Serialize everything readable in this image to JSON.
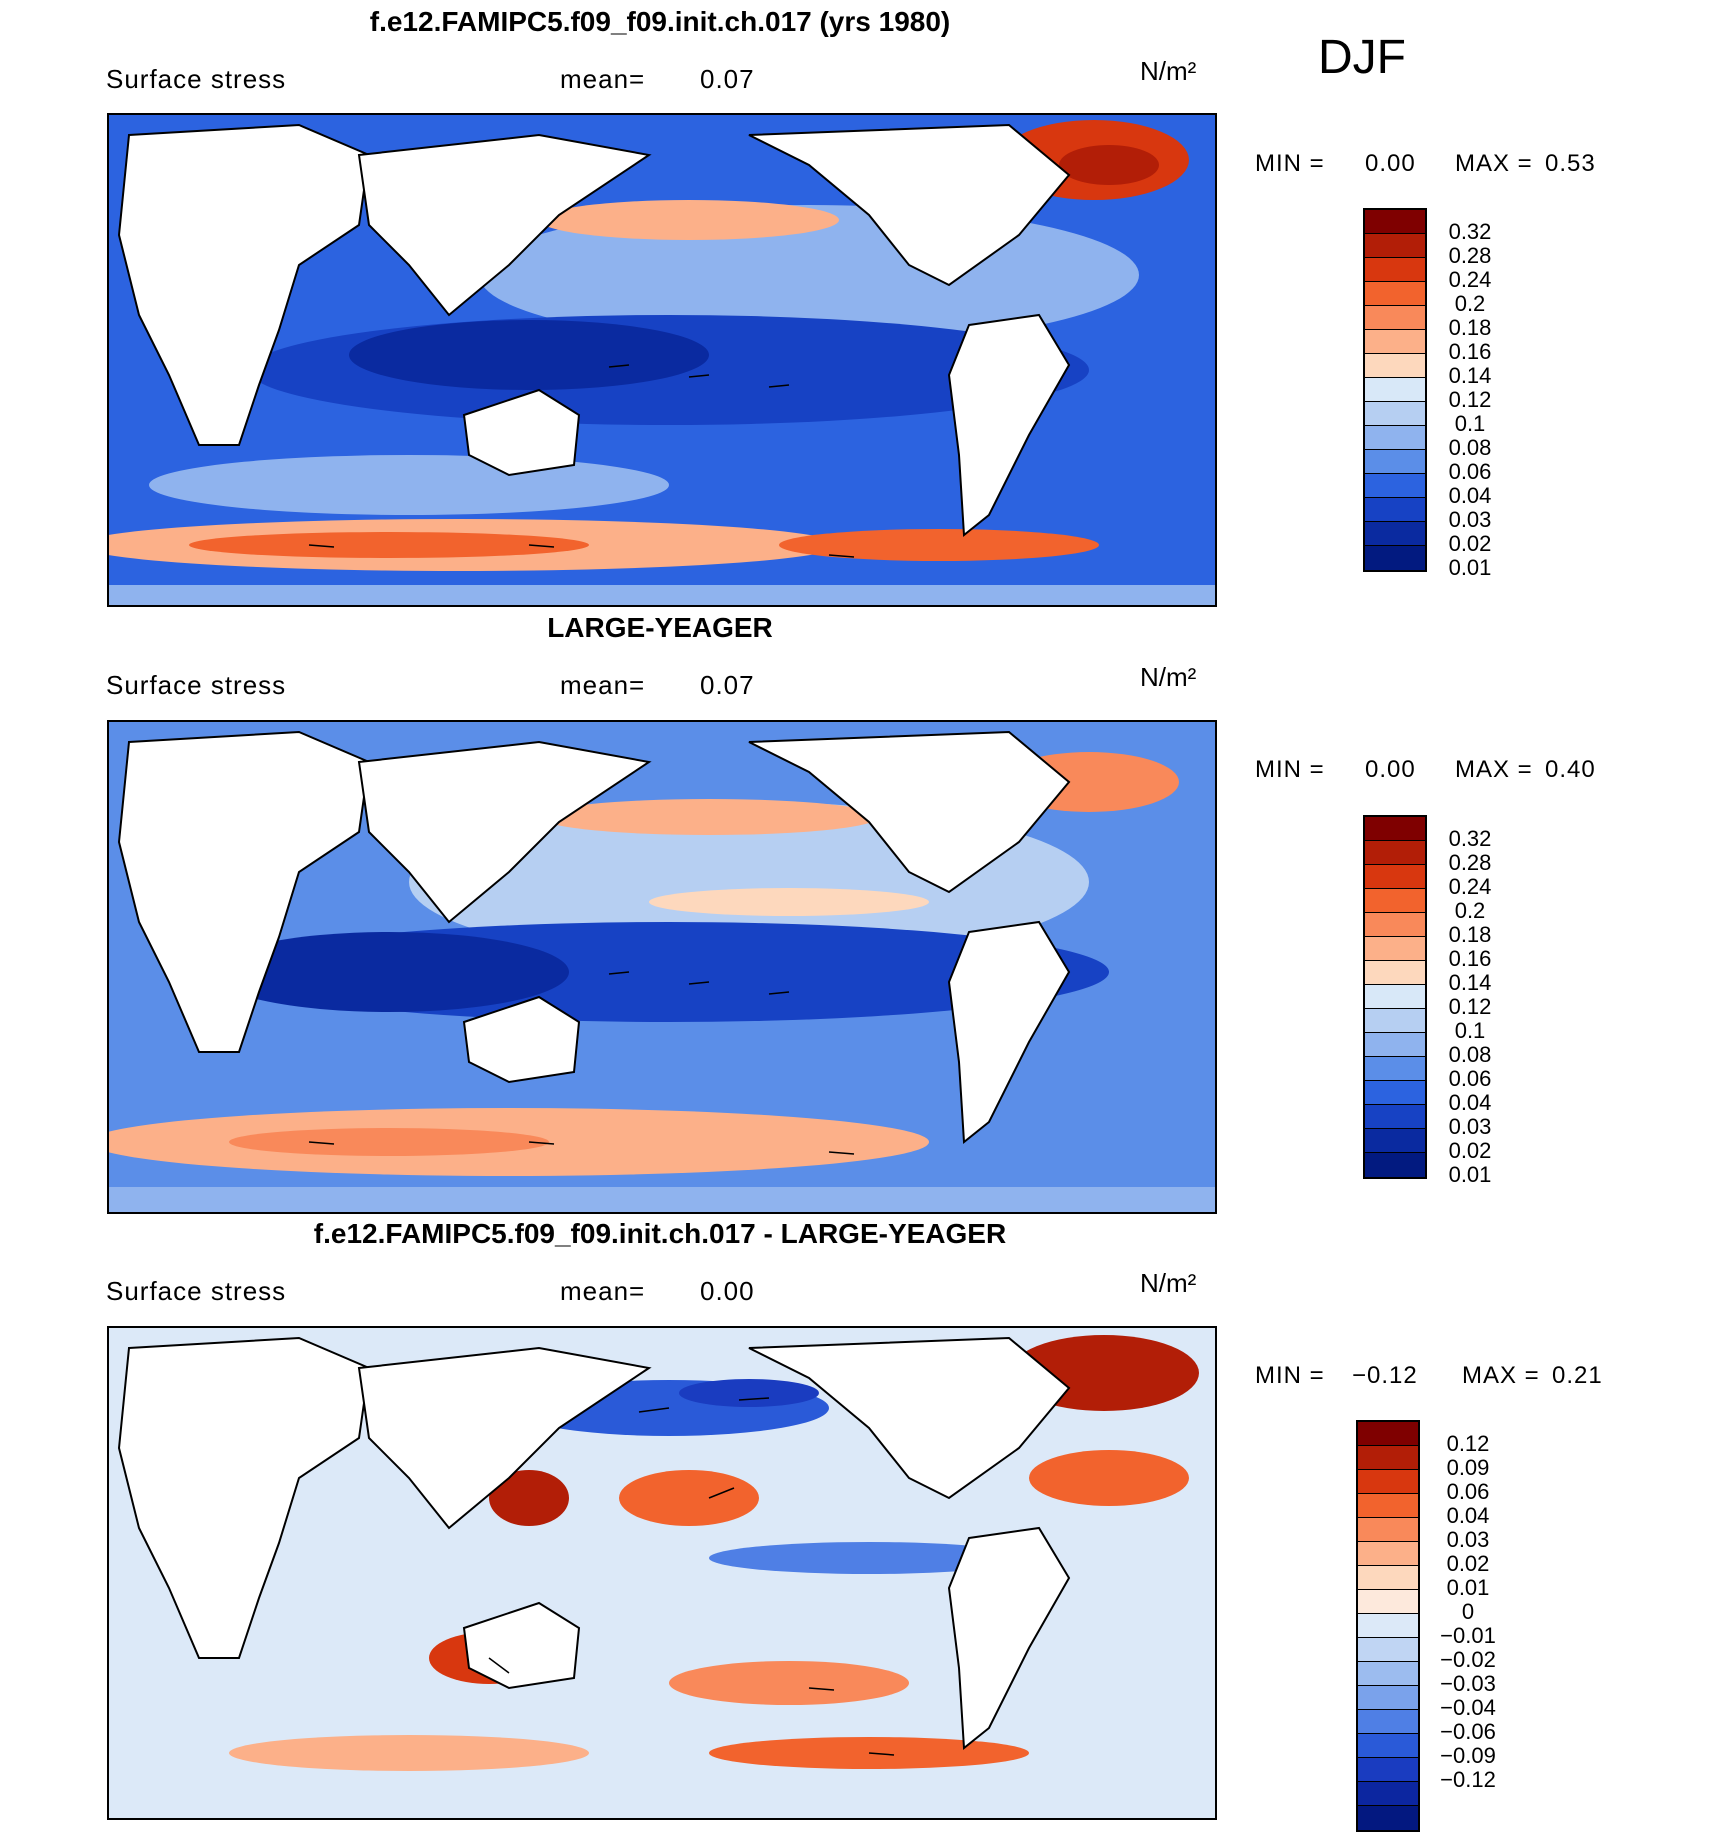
{
  "season": "DJF",
  "panels": [
    {
      "title": "f.e12.FAMIPC5.f09_f09.init.ch.017 (yrs 1980)",
      "field": "Surface stress",
      "mean_label": "mean=",
      "mean_value": "0.07",
      "units": "N/m²",
      "min_label": "MIN =",
      "min_value": "0.00",
      "max_label": "MAX =",
      "max_value": "0.53",
      "colorbar": {
        "colors": [
          "#7f0000",
          "#b21e07",
          "#d8370f",
          "#f2632d",
          "#f9895a",
          "#fcb089",
          "#fdd8bd",
          "#d8e8f8",
          "#b6cff2",
          "#8fb3ee",
          "#5b8ee8",
          "#2c63e0",
          "#1742c4",
          "#0a2aa0",
          "#021a80"
        ],
        "labels": [
          "0.32",
          "0.28",
          "0.24",
          "0.2",
          "0.18",
          "0.16",
          "0.14",
          "0.12",
          "0.1",
          "0.08",
          "0.06",
          "0.04",
          "0.03",
          "0.02",
          "0.01"
        ]
      }
    },
    {
      "title": "LARGE-YEAGER",
      "field": "Surface stress",
      "mean_label": "mean=",
      "mean_value": "0.07",
      "units": "N/m²",
      "min_label": "MIN =",
      "min_value": "0.00",
      "max_label": "MAX =",
      "max_value": "0.40",
      "colorbar": {
        "colors": [
          "#7f0000",
          "#b21e07",
          "#d8370f",
          "#f2632d",
          "#f9895a",
          "#fcb089",
          "#fdd8bd",
          "#d8e8f8",
          "#b6cff2",
          "#8fb3ee",
          "#5b8ee8",
          "#2c63e0",
          "#1742c4",
          "#0a2aa0",
          "#021a80"
        ],
        "labels": [
          "0.32",
          "0.28",
          "0.24",
          "0.2",
          "0.18",
          "0.16",
          "0.14",
          "0.12",
          "0.1",
          "0.08",
          "0.06",
          "0.04",
          "0.03",
          "0.02",
          "0.01"
        ]
      }
    },
    {
      "title": "f.e12.FAMIPC5.f09_f09.init.ch.017 - LARGE-YEAGER",
      "field": "Surface stress",
      "mean_label": "mean=",
      "mean_value": "0.00",
      "units": "N/m²",
      "min_label": "MIN =",
      "min_value": "−0.12",
      "max_label": "MAX =",
      "max_value": "0.21",
      "colorbar": {
        "colors": [
          "#7f0000",
          "#b21e07",
          "#d8370f",
          "#f2632d",
          "#f9895a",
          "#fcb089",
          "#fdd8bd",
          "#fde9dc",
          "#dce9f8",
          "#c0d5f3",
          "#9cbcef",
          "#7aa2eb",
          "#4f7fe5",
          "#2a5ad8",
          "#1a3cc0",
          "#0c26a0",
          "#031880"
        ],
        "labels": [
          "0.12",
          "0.09",
          "0.06",
          "0.04",
          "0.03",
          "0.02",
          "0.01",
          "0",
          "−0.01",
          "−0.02",
          "−0.03",
          "−0.04",
          "−0.06",
          "−0.09",
          "−0.12"
        ]
      }
    }
  ]
}
